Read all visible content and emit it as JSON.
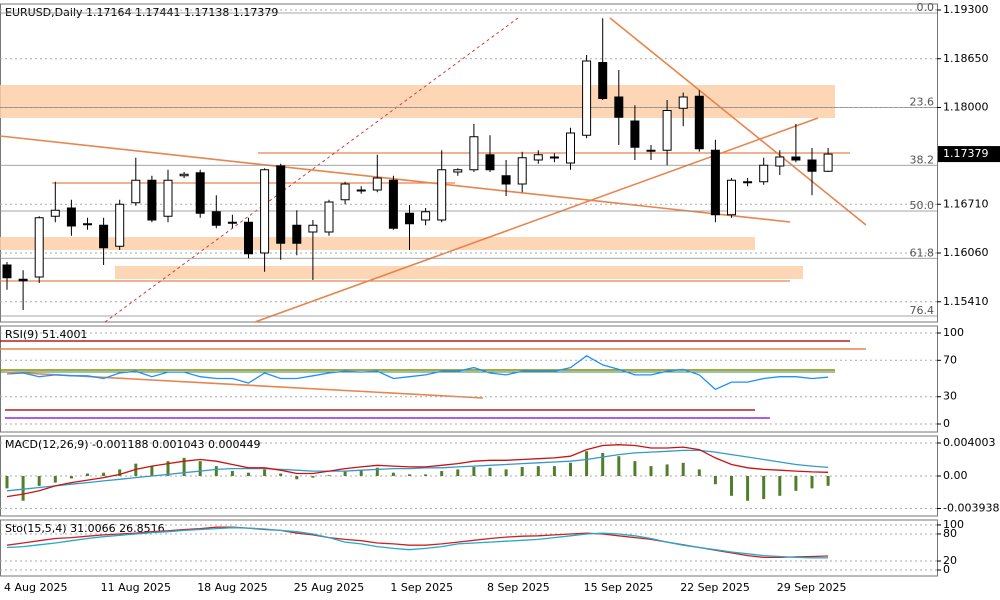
{
  "chart_data": [
    {
      "type": "candlestick",
      "title": "EURUSD,Daily  1.17164 1.17441 1.17138 1.17379",
      "categories": [
        "4 Aug 2025",
        null,
        null,
        null,
        null,
        null,
        "11 Aug 2025",
        null,
        null,
        null,
        null,
        null,
        "18 Aug 2025",
        null,
        null,
        null,
        null,
        null,
        "25 Aug 2025",
        null,
        null,
        null,
        null,
        null,
        "1 Sep 2025",
        null,
        null,
        null,
        null,
        null,
        "8 Sep 2025",
        null,
        null,
        null,
        null,
        null,
        "15 Sep 2025",
        null,
        null,
        null,
        null,
        null,
        "22 Sep 2025",
        null,
        null,
        null,
        null,
        null,
        "29 Sep 2025",
        null,
        null,
        null
      ],
      "open": [
        1.159,
        1.1571,
        1.1574,
        1.1655,
        1.1666,
        1.1645,
        1.1643,
        1.1615,
        1.1673,
        1.1703,
        1.1655,
        1.1709,
        1.1713,
        1.1661,
        1.1647,
        1.1647,
        1.1606,
        1.1722,
        1.1643,
        1.1634,
        1.1634,
        1.1677,
        1.169,
        1.169,
        1.1703,
        1.1659,
        1.165,
        1.165,
        1.1714,
        1.1717,
        1.1737,
        1.1709,
        1.1698,
        1.173,
        1.1734,
        1.1726,
        1.1763,
        1.186,
        1.1814,
        1.1782,
        1.1743,
        1.1743,
        1.1799,
        1.1815,
        1.1743,
        1.1657,
        1.1701,
        1.1701,
        1.1722,
        1.1734,
        1.173,
        1.1715
      ],
      "high": [
        1.1594,
        1.1583,
        1.1655,
        1.1701,
        1.1677,
        1.1653,
        1.1653,
        1.1677,
        1.1733,
        1.1709,
        1.1717,
        1.1714,
        1.1717,
        1.1683,
        1.1657,
        1.1653,
        1.1719,
        1.1725,
        1.1663,
        1.165,
        1.1677,
        1.1701,
        1.1695,
        1.1737,
        1.1709,
        1.167,
        1.1666,
        1.1743,
        1.1719,
        1.1778,
        1.1763,
        1.173,
        1.1741,
        1.1743,
        1.1739,
        1.1773,
        1.187,
        1.1919,
        1.185,
        1.1803,
        1.175,
        1.181,
        1.182,
        1.1823,
        1.1757,
        1.1706,
        1.1706,
        1.1733,
        1.1743,
        1.1778,
        1.1746,
        1.1746
      ],
      "low": [
        1.1557,
        1.153,
        1.1566,
        1.1647,
        1.1629,
        1.1637,
        1.159,
        1.161,
        1.1669,
        1.1647,
        1.1647,
        1.1706,
        1.1653,
        1.1639,
        1.1639,
        1.1599,
        1.1581,
        1.1597,
        1.1603,
        1.157,
        1.1629,
        1.1671,
        1.1685,
        1.1687,
        1.1637,
        1.161,
        1.1643,
        1.1647,
        1.1709,
        1.1714,
        1.1714,
        1.1682,
        1.1687,
        1.1725,
        1.1727,
        1.1717,
        1.1759,
        1.181,
        1.175,
        1.173,
        1.173,
        1.1723,
        1.1775,
        1.1741,
        1.1647,
        1.1653,
        1.1695,
        1.1697,
        1.171,
        1.1727,
        1.1683,
        1.1714
      ],
      "close": [
        1.1573,
        1.1569,
        1.1653,
        1.1663,
        1.1642,
        1.1645,
        1.1613,
        1.1671,
        1.1703,
        1.165,
        1.1703,
        1.1711,
        1.1659,
        1.1643,
        1.1647,
        1.1605,
        1.1717,
        1.1619,
        1.1619,
        1.1643,
        1.1674,
        1.1698,
        1.169,
        1.1706,
        1.1639,
        1.1645,
        1.1661,
        1.1717,
        1.1717,
        1.1761,
        1.1717,
        1.1698,
        1.1733,
        1.1737,
        1.1734,
        1.1766,
        1.1862,
        1.1812,
        1.1787,
        1.1747,
        1.1742,
        1.1796,
        1.1814,
        1.1745,
        1.1657,
        1.1703,
        1.1701,
        1.1723,
        1.1734,
        1.173,
        1.1715,
        1.17379
      ],
      "last_price": "1.17379",
      "ylim": [
        1.1514,
        1.1938
      ],
      "yticks": [
        {
          "value": 1.193,
          "label": "1.19300"
        },
        {
          "value": 1.1865,
          "label": "1.18650"
        },
        {
          "value": 1.18,
          "label": "1.18000"
        },
        {
          "value": 1.1671,
          "label": "1.16710"
        },
        {
          "value": 1.1606,
          "label": "1.16060"
        },
        {
          "value": 1.1541,
          "label": "1.15410"
        }
      ],
      "fib_levels": [
        {
          "label": "0.0",
          "price": 1.1926
        },
        {
          "label": "23.6",
          "price": 1.18
        },
        {
          "label": "38.2",
          "price": 1.1723
        },
        {
          "label": "50.0",
          "price": 1.1662
        },
        {
          "label": "61.8",
          "price": 1.1599
        },
        {
          "label": "76.4",
          "price": 1.1522
        }
      ],
      "grid": true
    },
    {
      "type": "line",
      "title": "RSI(9) 51.4001",
      "color": "#1e90ff",
      "values": [
        55,
        56,
        52,
        54,
        53,
        53,
        50,
        56,
        58,
        52,
        57,
        57,
        52,
        50,
        50,
        45,
        56,
        50,
        50,
        53,
        56,
        58,
        57,
        58,
        50,
        52,
        54,
        58,
        58,
        62,
        56,
        54,
        58,
        58,
        58,
        62,
        75,
        65,
        60,
        54,
        54,
        58,
        60,
        54,
        38,
        46,
        46,
        50,
        52,
        52,
        50,
        51.4
      ],
      "ylim": [
        -8.8,
        107.7
      ],
      "yticks": [
        100,
        70,
        30,
        0
      ]
    },
    {
      "type": "macd",
      "title": "MACD(12,26,9) -0.001188 0.001043 0.000449",
      "histogram": {
        "color": "#4f7f2a",
        "values": [
          -0.0015,
          -0.003,
          -0.0012,
          -0.0008,
          -0.0003,
          0.0003,
          0.0004,
          0.0008,
          0.0015,
          0.0012,
          0.0018,
          0.0022,
          0.0018,
          0.0012,
          0.0006,
          0.0004,
          0.0008,
          0.0003,
          -0.0004,
          -0.0002,
          0.0001,
          0.0006,
          0.0007,
          0.001,
          0.0004,
          0.0002,
          0.0002,
          0.0006,
          0.0008,
          0.0011,
          0.001,
          0.0008,
          0.0011,
          0.0012,
          0.0012,
          0.0016,
          0.003,
          0.0028,
          0.0024,
          0.0018,
          0.0012,
          0.0014,
          0.0016,
          0.0008,
          -0.001,
          -0.0024,
          -0.003,
          -0.0028,
          -0.0024,
          -0.0018,
          -0.0015,
          -0.001188
        ]
      },
      "series": [
        {
          "color": "#3399cc",
          "values": [
            -0.0018,
            -0.0016,
            -0.0014,
            -0.0012,
            -0.001,
            -0.0008,
            -0.0006,
            -0.0004,
            -0.0002,
            0.0,
            0.0002,
            0.0004,
            0.0006,
            0.0008,
            0.0009,
            0.0009,
            0.0009,
            0.0008,
            0.0007,
            0.0006,
            0.0006,
            0.0006,
            0.0007,
            0.0008,
            0.0009,
            0.0009,
            0.001,
            0.001,
            0.0011,
            0.0012,
            0.0013,
            0.0014,
            0.0015,
            0.0016,
            0.0017,
            0.0018,
            0.002,
            0.0023,
            0.0026,
            0.0028,
            0.0029,
            0.003,
            0.0031,
            0.0031,
            0.0029,
            0.0026,
            0.0023,
            0.002,
            0.0017,
            0.0014,
            0.0012,
            0.001043
          ]
        },
        {
          "color": "#cc1111",
          "values": [
            -0.0025,
            -0.0022,
            -0.0018,
            -0.0012,
            -0.0008,
            -0.0005,
            -0.0002,
            0.0002,
            0.0008,
            0.0012,
            0.0015,
            0.0018,
            0.002,
            0.0018,
            0.0014,
            0.001,
            0.001,
            0.0007,
            0.0003,
            0.0003,
            0.0006,
            0.0009,
            0.0011,
            0.0013,
            0.0012,
            0.0011,
            0.0011,
            0.0013,
            0.0015,
            0.0018,
            0.0019,
            0.0019,
            0.002,
            0.0021,
            0.0022,
            0.0024,
            0.0032,
            0.0037,
            0.0038,
            0.0037,
            0.0034,
            0.0034,
            0.0035,
            0.0032,
            0.0022,
            0.0014,
            0.001,
            0.0008,
            0.0007,
            0.0006,
            0.0005,
            0.000449
          ]
        }
      ],
      "ylim": [
        -0.00485,
        0.00485
      ],
      "yticks": [
        0.004003,
        {
          "value": 0,
          "label": "0.00"
        },
        -0.003938
      ]
    },
    {
      "type": "line",
      "title": "Sto(15,5,4) 31.0066 26.8516",
      "series": [
        {
          "color": "#cc2222",
          "values": [
            55,
            60,
            65,
            70,
            72,
            75,
            78,
            80,
            82,
            85,
            87,
            90,
            92,
            95,
            95,
            93,
            90,
            88,
            82,
            78,
            72,
            68,
            65,
            60,
            58,
            55,
            55,
            58,
            62,
            66,
            70,
            73,
            75,
            76,
            78,
            80,
            82,
            80,
            76,
            72,
            68,
            62,
            56,
            50,
            44,
            38,
            32,
            28,
            28,
            29,
            30,
            31.0066
          ]
        },
        {
          "color": "#22aacc",
          "values": [
            50,
            52,
            56,
            60,
            65,
            70,
            74,
            77,
            80,
            83,
            85,
            88,
            90,
            92,
            94,
            93,
            91,
            88,
            85,
            80,
            72,
            62,
            58,
            52,
            48,
            45,
            48,
            52,
            58,
            60,
            62,
            64,
            66,
            68,
            72,
            76,
            80,
            82,
            80,
            76,
            70,
            62,
            55,
            50,
            45,
            40,
            36,
            32,
            30,
            28,
            27,
            26.8516
          ]
        }
      ],
      "ylim": [
        -13.3,
        111
      ],
      "yticks": [
        100,
        80,
        20,
        0
      ]
    }
  ]
}
